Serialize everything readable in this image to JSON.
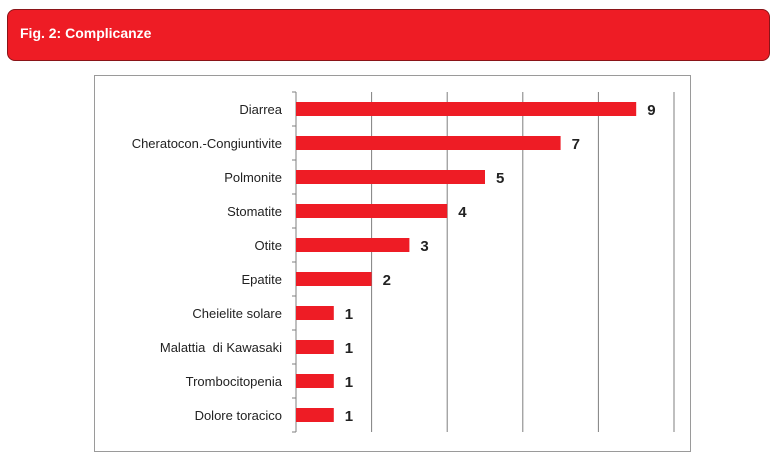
{
  "header": {
    "title": "Fig. 2: Complicanze"
  },
  "colors": {
    "banner": "#ee1c25",
    "bar": "#ee1c25",
    "grid": "#7f7f7f"
  },
  "chart_data": {
    "type": "bar",
    "orientation": "horizontal",
    "title": "",
    "xlabel": "",
    "ylabel": "",
    "categories": [
      "Diarrea",
      "Cheratocon.-Congiuntivite",
      "Polmonite",
      "Stomatite",
      "Otite",
      "Epatite",
      "Cheielite solare",
      "Malattia  di Kawasaki",
      "Trombocitopenia",
      "Dolore toracico"
    ],
    "values": [
      9,
      7,
      5,
      4,
      3,
      2,
      1,
      1,
      1,
      1
    ],
    "value_labels": [
      "9",
      "7",
      "5",
      "4",
      "3",
      "2",
      "1",
      "1",
      "1",
      "1"
    ],
    "xlim": [
      0,
      10
    ],
    "grid": true,
    "grid_interval": 2,
    "legend": "none"
  }
}
